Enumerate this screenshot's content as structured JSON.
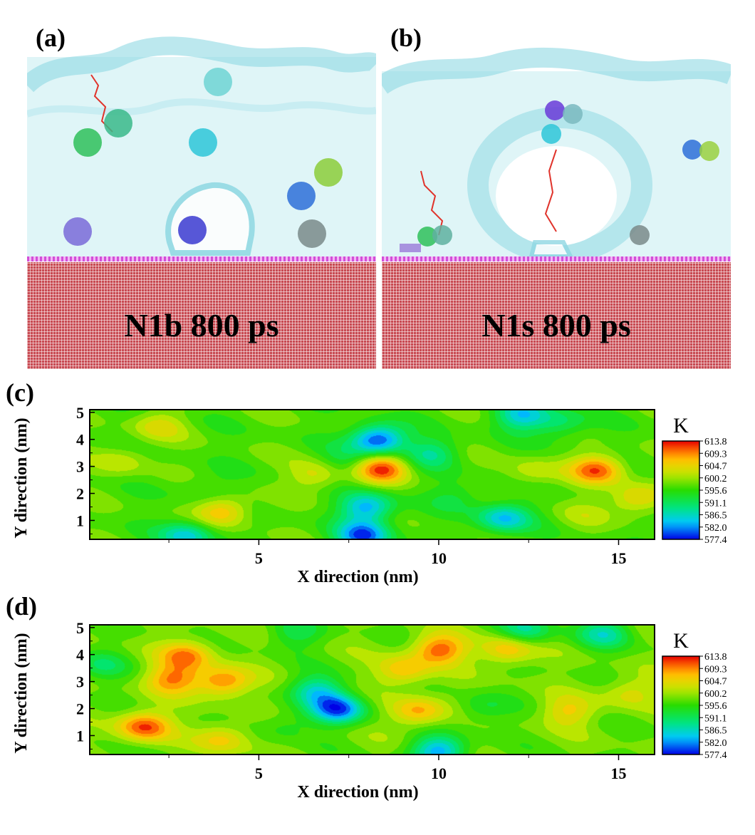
{
  "panels": [
    {
      "label": "(a)",
      "caption": "N1b 800 ps"
    },
    {
      "label": "(b)",
      "caption": "N1s 800 ps"
    },
    {
      "label": "(c)"
    },
    {
      "label": "(d)"
    }
  ],
  "colors": {
    "water": "#dff5f7",
    "vapor_surface": "#8fd8e3",
    "substrate": "#c84a52",
    "surfactant": "#d24fd8",
    "trajectory": "#e0332b"
  },
  "chart_data": [
    {
      "type": "heatmap",
      "panel": "(c)",
      "xlabel": "X direction (nm)",
      "ylabel": "Y direction (nm)",
      "x_ticks": [
        "5",
        "10",
        "15"
      ],
      "y_ticks": [
        "1",
        "2",
        "3",
        "4",
        "5"
      ],
      "xlim": [
        0.3,
        16
      ],
      "ylim": [
        0.3,
        5.1
      ],
      "colorbar": {
        "title": "K",
        "ticks": [
          "613.8",
          "609.3",
          "604.7",
          "600.2",
          "595.6",
          "591.1",
          "586.5",
          "582.0",
          "577.4"
        ],
        "range": [
          577.4,
          613.8
        ]
      },
      "baseline": 597,
      "features": [
        {
          "x": 8.3,
          "y": 4.0,
          "value": 578
        },
        {
          "x": 8.4,
          "y": 2.95,
          "value": 612
        },
        {
          "x": 14.4,
          "y": 2.9,
          "value": 611
        },
        {
          "x": 15.5,
          "y": 1.8,
          "value": 606
        },
        {
          "x": 4.0,
          "y": 1.35,
          "value": 607
        },
        {
          "x": 8.0,
          "y": 1.5,
          "value": 583
        },
        {
          "x": 7.9,
          "y": 0.45,
          "value": 580
        },
        {
          "x": 7.4,
          "y": 3.2,
          "value": 592
        },
        {
          "x": 6.6,
          "y": 2.7,
          "value": 604
        },
        {
          "x": 9.8,
          "y": 3.5,
          "value": 589
        },
        {
          "x": 11.8,
          "y": 1.1,
          "value": 584
        },
        {
          "x": 12.3,
          "y": 4.9,
          "value": 585
        },
        {
          "x": 13.4,
          "y": 4.6,
          "value": 590
        },
        {
          "x": 2.2,
          "y": 4.5,
          "value": 603
        },
        {
          "x": 1.2,
          "y": 3.2,
          "value": 602
        },
        {
          "x": 3.0,
          "y": 0.45,
          "value": 585
        },
        {
          "x": 10.5,
          "y": 1.9,
          "value": 593
        },
        {
          "x": 12.6,
          "y": 2.8,
          "value": 602
        },
        {
          "x": 3.5,
          "y": 2.2,
          "value": 594
        },
        {
          "x": 14.0,
          "y": 1.2,
          "value": 600
        }
      ]
    },
    {
      "type": "heatmap",
      "panel": "(d)",
      "xlabel": "X direction (nm)",
      "ylabel": "Y direction (nm)",
      "x_ticks": [
        "5",
        "10",
        "15"
      ],
      "y_ticks": [
        "1",
        "2",
        "3",
        "4",
        "5"
      ],
      "xlim": [
        0.3,
        16
      ],
      "ylim": [
        0.3,
        5.1
      ],
      "colorbar": {
        "title": "K",
        "ticks": [
          "613.8",
          "609.3",
          "604.7",
          "600.2",
          "595.6",
          "591.1",
          "586.5",
          "582.0",
          "577.4"
        ],
        "range": [
          577.4,
          613.8
        ]
      },
      "baseline": 598,
      "features": [
        {
          "x": 3.0,
          "y": 4.0,
          "value": 609
        },
        {
          "x": 2.6,
          "y": 3.1,
          "value": 609
        },
        {
          "x": 4.0,
          "y": 3.0,
          "value": 610
        },
        {
          "x": 1.8,
          "y": 1.35,
          "value": 612
        },
        {
          "x": 4.0,
          "y": 0.9,
          "value": 606
        },
        {
          "x": 7.2,
          "y": 2.0,
          "value": 580
        },
        {
          "x": 6.6,
          "y": 2.7,
          "value": 587
        },
        {
          "x": 9.0,
          "y": 3.4,
          "value": 607
        },
        {
          "x": 10.0,
          "y": 4.2,
          "value": 611
        },
        {
          "x": 9.4,
          "y": 1.9,
          "value": 608
        },
        {
          "x": 11.9,
          "y": 4.2,
          "value": 608
        },
        {
          "x": 13.6,
          "y": 1.9,
          "value": 605
        },
        {
          "x": 15.3,
          "y": 2.6,
          "value": 604
        },
        {
          "x": 10.0,
          "y": 0.45,
          "value": 583
        },
        {
          "x": 12.4,
          "y": 4.9,
          "value": 588
        },
        {
          "x": 14.6,
          "y": 4.8,
          "value": 588
        },
        {
          "x": 6.0,
          "y": 4.8,
          "value": 592
        },
        {
          "x": 11.2,
          "y": 2.0,
          "value": 593
        },
        {
          "x": 0.6,
          "y": 3.6,
          "value": 592
        },
        {
          "x": 5.7,
          "y": 1.4,
          "value": 594
        }
      ]
    }
  ]
}
